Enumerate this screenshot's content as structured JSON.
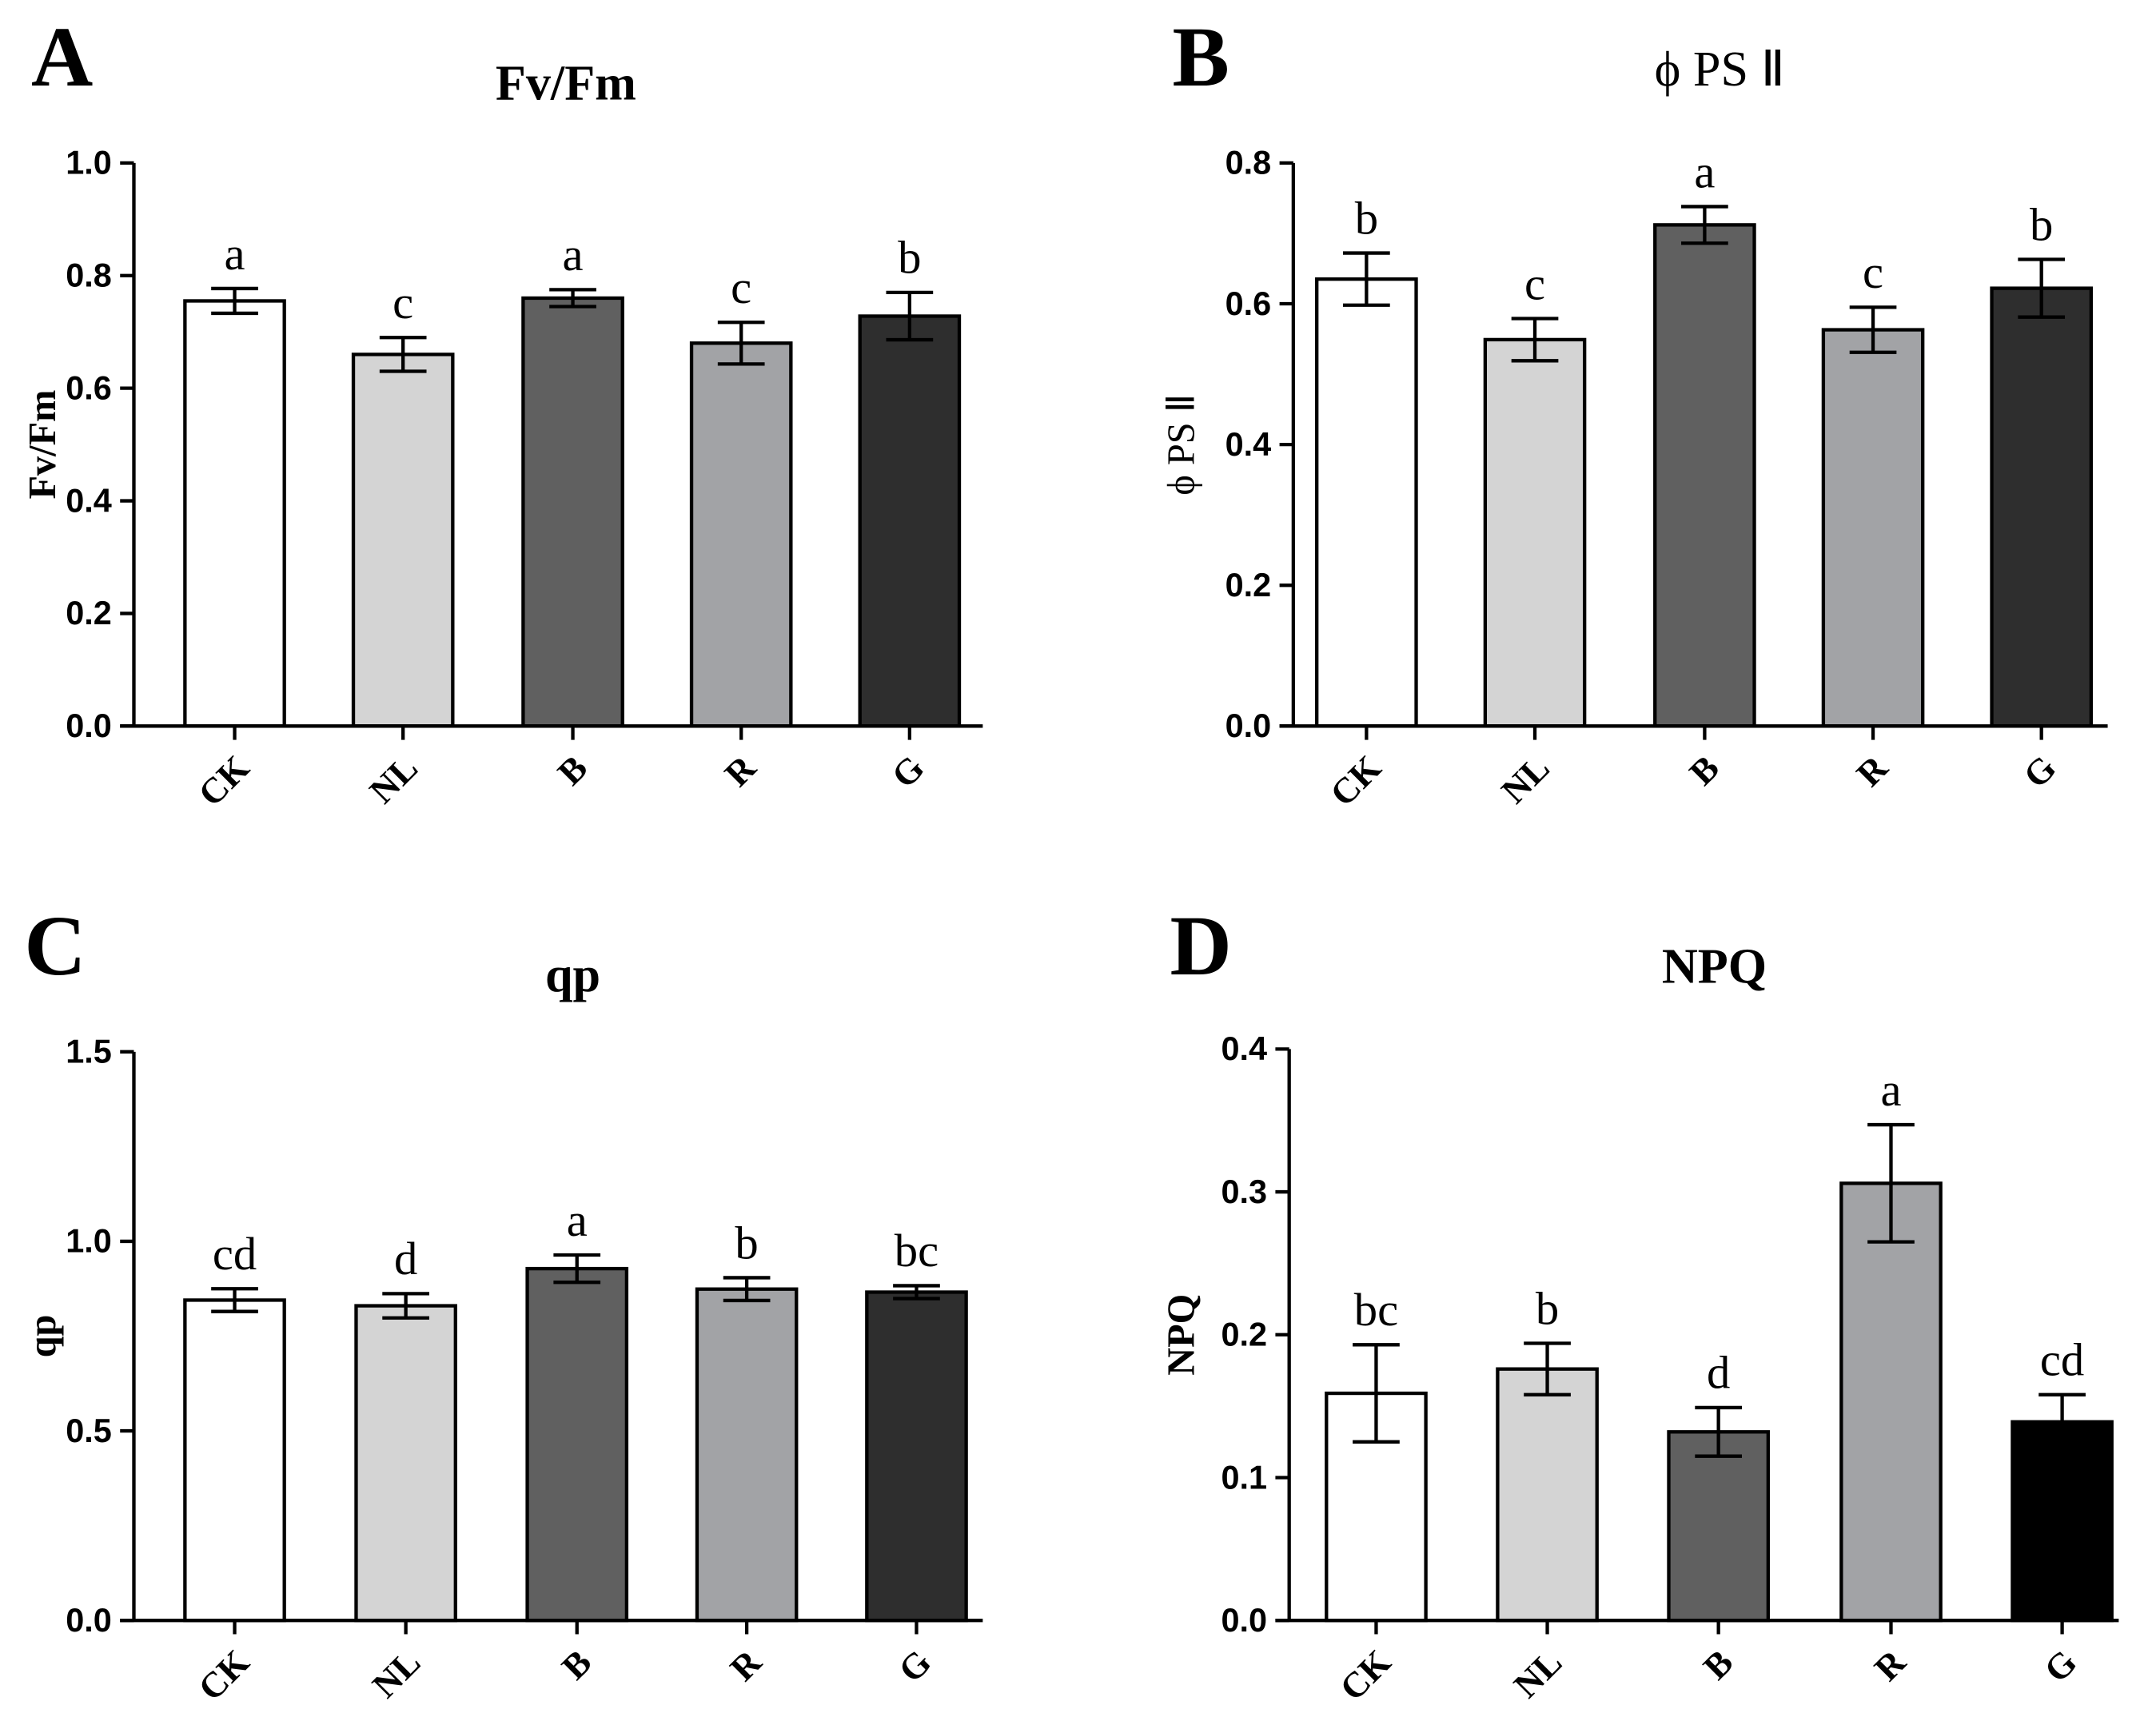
{
  "chart_data": [
    {
      "type": "bar",
      "panel": "A",
      "title": "Fv/Fm",
      "title_bold": true,
      "ylabel": "Fv/Fm",
      "ylabel_bold": true,
      "categories": [
        "CK",
        "NL",
        "B",
        "R",
        "G"
      ],
      "values": [
        0.755,
        0.66,
        0.76,
        0.68,
        0.728
      ],
      "errors": [
        0.022,
        0.03,
        0.015,
        0.037,
        0.042
      ],
      "significance": [
        "a",
        "c",
        "a",
        "c",
        "b"
      ],
      "ylim": [
        0,
        1.0
      ],
      "yticks": [
        "0.0",
        "0.2",
        "0.4",
        "0.6",
        "0.8",
        "1.0"
      ],
      "colors": [
        "#ffffff",
        "#d4d4d4",
        "#606060",
        "#a2a3a6",
        "#2e2e2e"
      ],
      "grid": false
    },
    {
      "type": "bar",
      "panel": "B",
      "title": "ϕ PS Ⅱ",
      "title_bold": false,
      "ylabel": "ϕ PS Ⅱ",
      "ylabel_bold": false,
      "categories": [
        "CK",
        "NL",
        "B",
        "R",
        "G"
      ],
      "values": [
        0.635,
        0.549,
        0.712,
        0.563,
        0.622
      ],
      "errors": [
        0.037,
        0.03,
        0.026,
        0.032,
        0.041
      ],
      "significance": [
        "b",
        "c",
        "a",
        "c",
        "b"
      ],
      "ylim": [
        0,
        0.8
      ],
      "yticks": [
        "0.0",
        "0.2",
        "0.4",
        "0.6",
        "0.8"
      ],
      "colors": [
        "#ffffff",
        "#d4d4d4",
        "#606060",
        "#a2a3a6",
        "#2e2e2e"
      ],
      "grid": false
    },
    {
      "type": "bar",
      "panel": "C",
      "title": "qp",
      "title_bold": true,
      "ylabel": "qp",
      "ylabel_bold": true,
      "categories": [
        "CK",
        "NL",
        "B",
        "R",
        "G"
      ],
      "values": [
        0.845,
        0.83,
        0.928,
        0.874,
        0.866
      ],
      "errors": [
        0.03,
        0.032,
        0.036,
        0.03,
        0.017
      ],
      "significance": [
        "cd",
        "d",
        "a",
        "b",
        "bc"
      ],
      "ylim": [
        0,
        1.5
      ],
      "yticks": [
        "0.0",
        "0.5",
        "1.0",
        "1.5"
      ],
      "colors": [
        "#ffffff",
        "#d4d4d4",
        "#606060",
        "#a2a3a6",
        "#2e2e2e"
      ],
      "grid": false
    },
    {
      "type": "bar",
      "panel": "D",
      "title": "NPQ",
      "title_bold": true,
      "ylabel": "NPQ",
      "ylabel_bold": true,
      "categories": [
        "CK",
        "NL",
        "B",
        "R",
        "G"
      ],
      "values": [
        0.159,
        0.176,
        0.132,
        0.306,
        0.139
      ],
      "errors": [
        0.034,
        0.018,
        0.017,
        0.041,
        0.019
      ],
      "significance": [
        "bc",
        "b",
        "d",
        "a",
        "cd"
      ],
      "ylim": [
        0,
        0.4
      ],
      "yticks": [
        "0.0",
        "0.1",
        "0.2",
        "0.3",
        "0.4"
      ],
      "colors": [
        "#ffffff",
        "#d4d4d4",
        "#606060",
        "#a2a3a6",
        "#000000"
      ],
      "grid": false
    }
  ]
}
